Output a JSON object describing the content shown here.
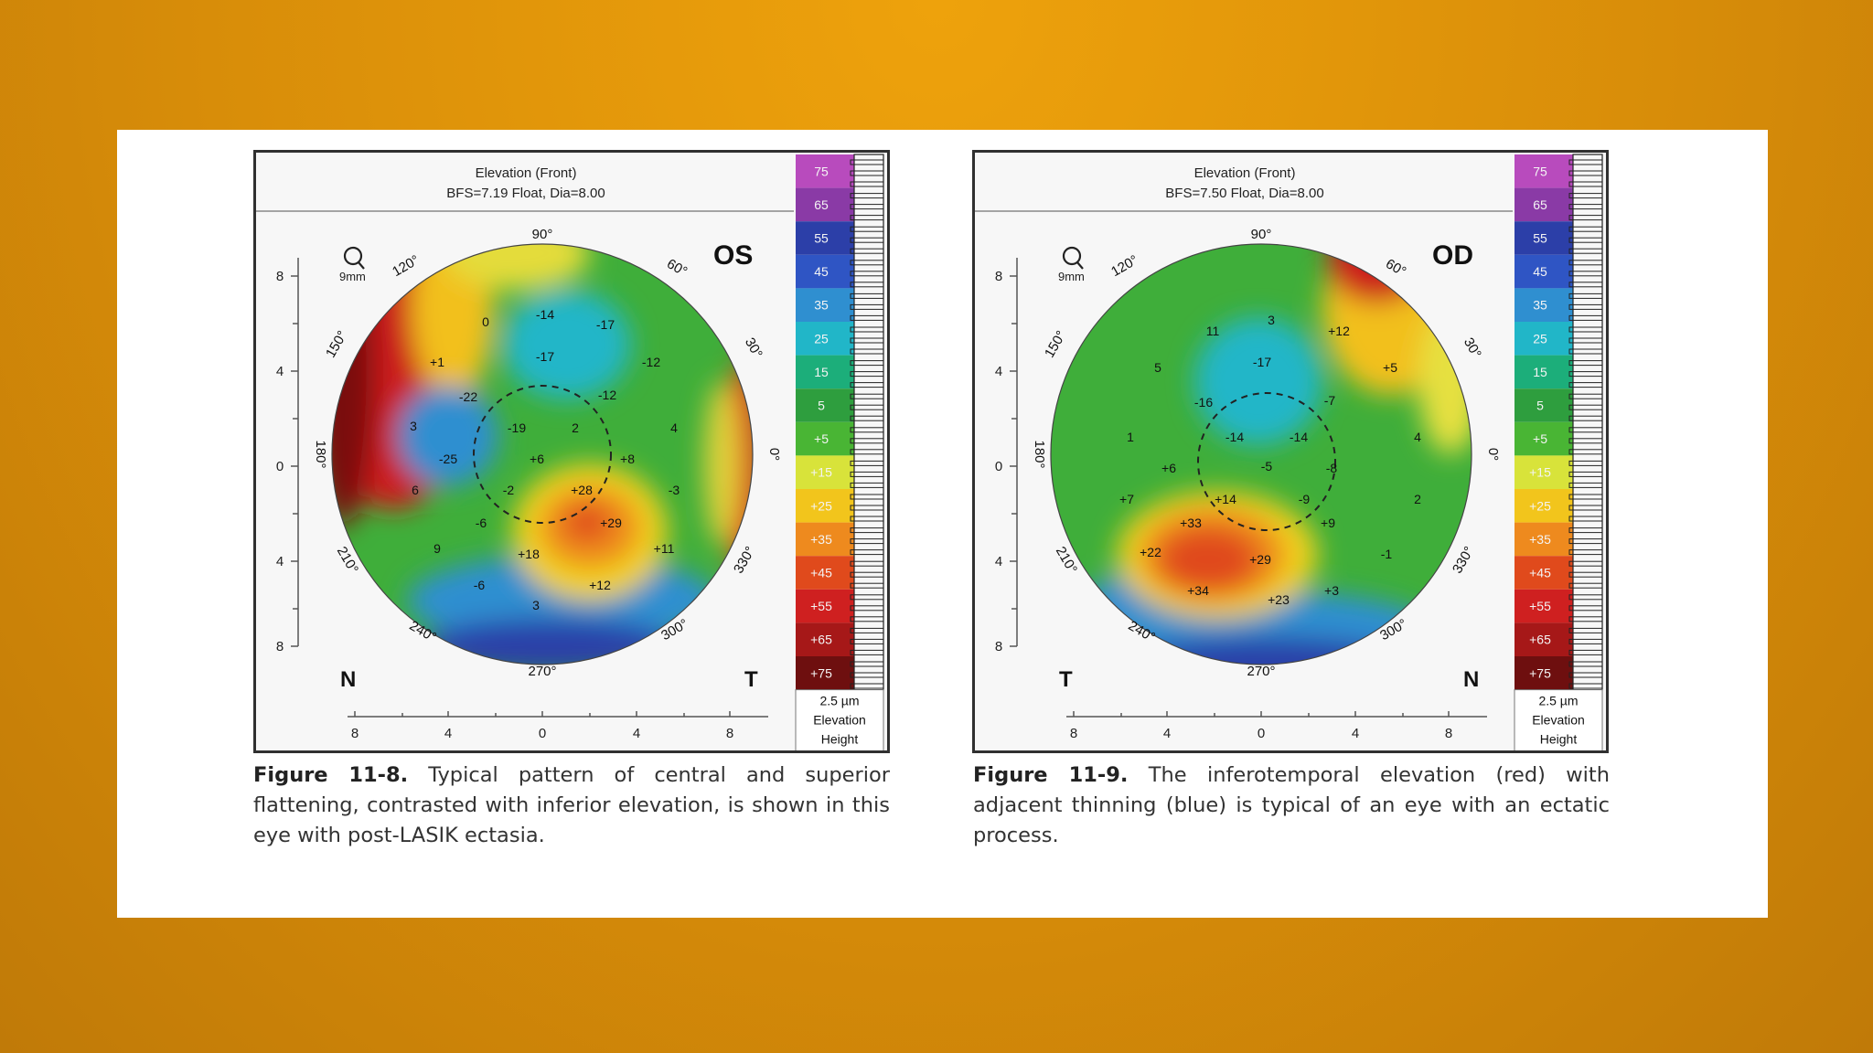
{
  "background_color": "#e69a0a",
  "scale": {
    "labels": [
      "75",
      "65",
      "55",
      "45",
      "35",
      "25",
      "15",
      "5",
      "+5",
      "+15",
      "+25",
      "+35",
      "+45",
      "+55",
      "+65",
      "+75"
    ],
    "colors": [
      "#b84bbd",
      "#8a3aa6",
      "#2c3fa8",
      "#2f55c4",
      "#2f8fd0",
      "#21b6c8",
      "#1cae7a",
      "#2e9e3e",
      "#49b534",
      "#d8e33a",
      "#f2c51c",
      "#ee8a1e",
      "#e04a1c",
      "#cf2020",
      "#a61818",
      "#6e0f0f"
    ],
    "footer": [
      "2.5 µm",
      "Elevation",
      "Height"
    ]
  },
  "figures": [
    {
      "id": "left",
      "title_line1": "Elevation (Front)",
      "title_line2": "BFS=7.19 Float, Dia=8.00",
      "eye": "OS",
      "zoom_label": "9mm",
      "corner_left": "N",
      "corner_right": "T",
      "axis_x_ticks": [
        "8",
        "4",
        "0",
        "4",
        "8"
      ],
      "axis_y_ticks": [
        "8",
        "4",
        "0",
        "4",
        "8"
      ],
      "angles": [
        "90°",
        "60°",
        "30°",
        "0°",
        "330°",
        "300°",
        "270°",
        "240°",
        "210°",
        "180°",
        "150°",
        "120°"
      ],
      "values": [
        "0",
        "-14",
        "-17",
        "+1",
        "-17",
        "-12",
        "-22",
        "-12",
        "3",
        "-19",
        "2",
        "4",
        "-25",
        "+6",
        "+8",
        "6",
        "-2",
        "+28",
        "-3",
        "-6",
        "+29",
        "9",
        "+18",
        "+11",
        "-6",
        "+12",
        "3"
      ],
      "caption_label": "Figure 11-8.",
      "caption_text": " Typical pattern of central and superior flattening, contrasted with inferior elevation, is shown in this eye with post-LASIK ectasia."
    },
    {
      "id": "right",
      "title_line1": "Elevation (Front)",
      "title_line2": "BFS=7.50 Float, Dia=8.00",
      "eye": "OD",
      "zoom_label": "9mm",
      "corner_left": "T",
      "corner_right": "N",
      "axis_x_ticks": [
        "8",
        "4",
        "0",
        "4",
        "8"
      ],
      "axis_y_ticks": [
        "8",
        "4",
        "0",
        "4",
        "8"
      ],
      "angles": [
        "90°",
        "60°",
        "30°",
        "0°",
        "330°",
        "300°",
        "270°",
        "240°",
        "210°",
        "180°",
        "150°",
        "120°"
      ],
      "values": [
        "11",
        "3",
        "+12",
        "5",
        "-17",
        "+5",
        "-16",
        "-7",
        "1",
        "-14",
        "-14",
        "4",
        "+6",
        "-5",
        "-8",
        "+7",
        "+14",
        "-9",
        "2",
        "+33",
        "+9",
        "+22",
        "+29",
        "-1",
        "+34",
        "+23",
        "+3"
      ],
      "caption_label": "Figure 11-9.",
      "caption_text": " The inferotemporal elevation (red) with adjacent thinning (blue) is typical of an eye with an ectatic process."
    }
  ]
}
